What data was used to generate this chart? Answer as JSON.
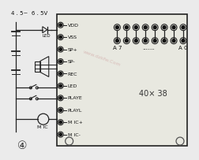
{
  "bg_color": "#ebebeb",
  "board_color": "#e8e8e0",
  "border_color": "#222222",
  "title_text": "4 . 5~  6 . 5V",
  "circle_num": "④",
  "pin_labels": [
    "VDD",
    "VSS",
    "SP+",
    "SP-",
    "REC",
    "LED",
    "PLAYE",
    "PLAYL",
    "M IC+",
    "M IC-"
  ],
  "addr_left": "A 7",
  "addr_dots": ".......",
  "addr_right": "A 0",
  "size_text": "40× 38",
  "watermark": "www.dzkfw.Com"
}
